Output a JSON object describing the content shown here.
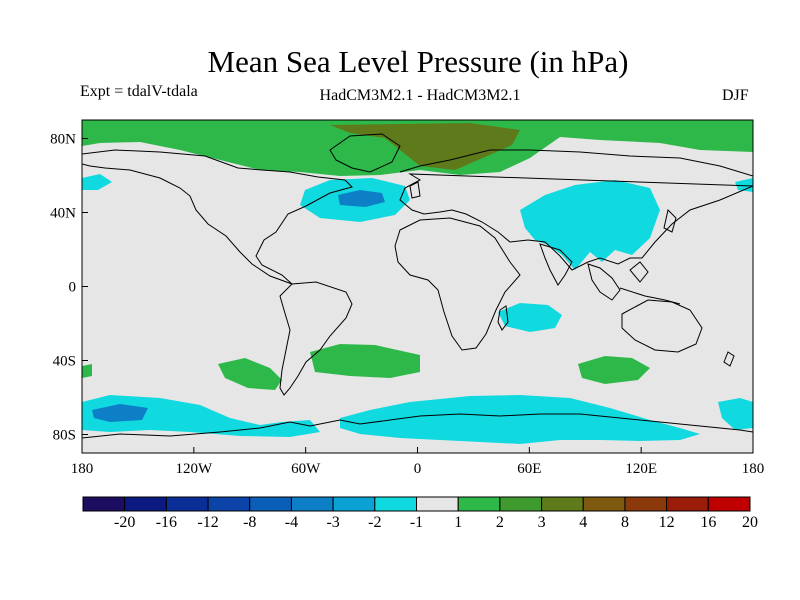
{
  "title": "Mean Sea Level Pressure (in hPa)",
  "experiment_label": "Expt = tdalV-tdala",
  "model_label": "HadCM3M2.1 - HadCM3M2.1",
  "season_label": "DJF",
  "map": {
    "projection": "cylindrical equidistant",
    "lon_range": [
      -180,
      180
    ],
    "lat_range": [
      -90,
      90
    ],
    "x_ticks": [
      "180",
      "120W",
      "60W",
      "0",
      "60E",
      "120E",
      "180"
    ],
    "y_ticks": [
      "80N",
      "40N",
      "0",
      "40S",
      "80S"
    ],
    "background_color": "#e6e6e6",
    "coastline_color": "#000000"
  },
  "colorbar": {
    "tick_labels": [
      "-20",
      "-16",
      "-12",
      "-8",
      "-4",
      "-3",
      "-2",
      "-1",
      "1",
      "2",
      "3",
      "4",
      "8",
      "12",
      "16",
      "20"
    ],
    "colors": [
      "#1c0d60",
      "#0a1a80",
      "#0a2e96",
      "#0b43a8",
      "#0c5fb8",
      "#0c7fc6",
      "#0aa3d4",
      "#11d9e0",
      "#e6e6e6",
      "#2eb84a",
      "#3f9a30",
      "#5e7a1a",
      "#7d5a10",
      "#8c3a0c",
      "#9c1c0a",
      "#c00000"
    ]
  }
}
